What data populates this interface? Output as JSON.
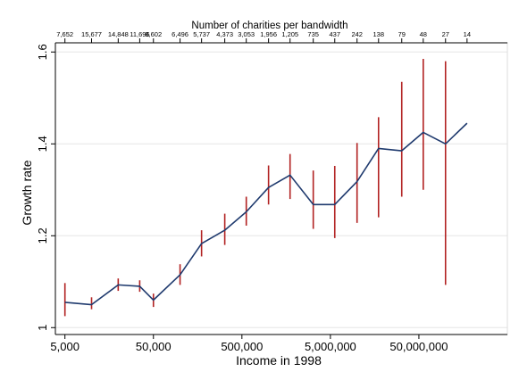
{
  "chart_data": {
    "type": "line",
    "title": "",
    "xlabel": "Income in 1998",
    "ylabel": "Growth rate",
    "x_scale": "log",
    "xlim": [
      3900,
      500000000
    ],
    "ylim": [
      0.985,
      1.62
    ],
    "x_ticks": [
      5000,
      50000,
      500000,
      5000000,
      50000000
    ],
    "x_tick_labels": [
      "5,000",
      "50,000",
      "500,000",
      "5,000,000",
      "50,000,000"
    ],
    "y_ticks": [
      1,
      1.2,
      1.4,
      1.6
    ],
    "y_tick_labels": [
      "1",
      "1.2",
      "1.4",
      "1.6"
    ],
    "top_axis": {
      "label": "Number of charities per bandwidth",
      "tick_labels": [
        "7,652",
        "15,677",
        "14,848",
        "11,696",
        "8,602",
        "6,496",
        "5,737",
        "4,373",
        "3,053",
        "1,956",
        "1,205",
        "735",
        "437",
        "242",
        "138",
        "79",
        "48",
        "27",
        "14"
      ]
    },
    "series": [
      {
        "color": "#1f3a6e",
        "x": [
          5000,
          10000,
          20000,
          35000,
          50000,
          100000,
          175000,
          320000,
          560000,
          1000000,
          1750000,
          3200000,
          5600000,
          10000000,
          17500000,
          32000000,
          56000000,
          100000000,
          175000000
        ],
        "y": [
          1.055,
          1.05,
          1.093,
          1.09,
          1.06,
          1.115,
          1.183,
          1.212,
          1.252,
          1.305,
          1.332,
          1.268,
          1.268,
          1.318,
          1.39,
          1.385,
          1.425,
          1.4,
          1.445
        ]
      }
    ],
    "error_bars": {
      "color": "#b22222",
      "x": [
        5000,
        10000,
        20000,
        35000,
        50000,
        100000,
        175000,
        320000,
        560000,
        1000000,
        1750000,
        3200000,
        5600000,
        10000000,
        17500000,
        32000000,
        56000000,
        100000000
      ],
      "low": [
        1.025,
        1.04,
        1.08,
        1.078,
        1.045,
        1.093,
        1.155,
        1.18,
        1.222,
        1.268,
        1.28,
        1.215,
        1.195,
        1.228,
        1.24,
        1.285,
        1.3,
        1.093
      ],
      "high": [
        1.097,
        1.066,
        1.107,
        1.103,
        1.074,
        1.138,
        1.212,
        1.248,
        1.285,
        1.353,
        1.378,
        1.342,
        1.352,
        1.402,
        1.458,
        1.535,
        1.585,
        1.58
      ]
    },
    "grid": true
  }
}
